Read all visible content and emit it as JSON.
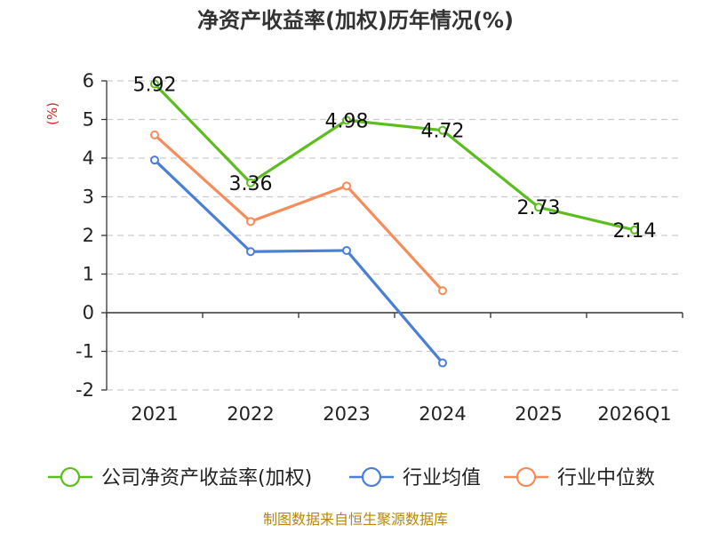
{
  "chart_data": {
    "type": "line",
    "title": "净资产收益率(加权)历年情况(%)",
    "ylabel": "(%)",
    "xlabel": "",
    "categories": [
      "2021",
      "2022",
      "2023",
      "2024",
      "2025",
      "2026Q1"
    ],
    "ylim": [
      -2,
      6
    ],
    "yticks": [
      6,
      5,
      4,
      3,
      2,
      1,
      0,
      -1,
      -2
    ],
    "grid": true,
    "legend_position": "bottom",
    "series": [
      {
        "name": "公司净资产收益率(加权)",
        "color": "#5cbd1f",
        "values": [
          5.92,
          3.36,
          4.98,
          4.72,
          2.73,
          2.14
        ],
        "labels": [
          "5.92",
          "3.36",
          "4.98",
          "4.72",
          "2.73",
          "2.14"
        ]
      },
      {
        "name": "行业均值",
        "color": "#4a7fd8",
        "values": [
          3.95,
          1.58,
          1.61,
          -1.3,
          null,
          null
        ]
      },
      {
        "name": "行业中位数",
        "color": "#f58c5a",
        "values": [
          4.6,
          2.36,
          3.28,
          0.57,
          null,
          null
        ]
      }
    ],
    "source": "制图数据来自恒生聚源数据库"
  }
}
